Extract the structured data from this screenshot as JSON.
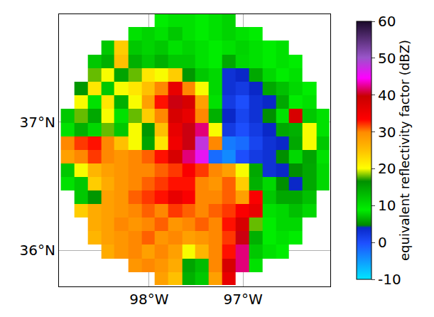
{
  "chart_data": {
    "type": "heatmap",
    "x": [
      -98.87,
      -98.73,
      -98.58,
      -98.44,
      -98.3,
      -98.15,
      -98.01,
      -97.87,
      -97.72,
      -97.58,
      -97.44,
      -97.3,
      -97.15,
      -97.01,
      -96.86,
      -96.72,
      -96.58,
      -96.44,
      -96.29,
      -96.15
    ],
    "y": [
      35.78,
      35.88,
      35.99,
      36.1,
      36.2,
      36.31,
      36.41,
      36.52,
      36.63,
      36.73,
      36.84,
      36.94,
      37.05,
      37.16,
      37.26,
      37.37,
      37.47,
      37.58,
      37.69,
      37.79
    ],
    "values": [
      [
        null,
        null,
        null,
        null,
        null,
        null,
        null,
        28,
        25,
        14,
        12,
        28,
        36,
        null,
        null,
        null,
        null,
        null,
        null,
        null
      ],
      [
        null,
        null,
        null,
        null,
        null,
        29,
        30,
        29,
        27,
        15,
        13,
        30,
        38,
        42,
        10,
        null,
        null,
        null,
        null,
        null
      ],
      [
        null,
        null,
        null,
        27,
        29,
        30,
        28,
        30,
        28,
        20,
        26,
        30,
        33,
        42,
        12,
        10,
        9,
        null,
        null,
        null
      ],
      [
        null,
        null,
        26,
        28,
        29,
        30,
        31,
        29,
        30,
        28,
        29,
        30,
        32,
        40,
        14,
        9,
        10,
        9,
        null,
        null
      ],
      [
        null,
        null,
        27,
        28,
        30,
        29,
        30,
        31,
        29,
        30,
        31,
        30,
        33,
        38,
        18,
        9,
        8,
        8,
        null,
        null
      ],
      [
        null,
        24,
        27,
        28,
        29,
        30,
        31,
        30,
        32,
        31,
        30,
        31,
        32,
        34,
        36,
        10,
        8,
        7,
        8,
        null
      ],
      [
        null,
        12,
        16,
        28,
        29,
        31,
        32,
        33,
        36,
        34,
        30,
        30,
        31,
        28,
        34,
        12,
        6,
        6,
        7,
        null
      ],
      [
        10,
        12,
        24,
        27,
        29,
        30,
        31,
        32,
        33,
        33,
        30,
        29,
        31,
        24,
        14,
        8,
        5,
        4,
        6,
        8
      ],
      [
        12,
        20,
        26,
        28,
        29,
        30,
        30,
        31,
        32,
        34,
        32,
        30,
        28,
        20,
        6,
        3,
        4,
        5,
        6,
        8
      ],
      [
        28,
        30,
        32,
        30,
        29,
        30,
        31,
        33,
        38,
        42,
        46,
        -2,
        -4,
        0,
        2,
        3,
        5,
        8,
        15,
        10
      ],
      [
        30,
        32,
        33,
        30,
        25,
        20,
        15,
        22,
        35,
        40,
        48,
        30,
        -3,
        -2,
        1,
        3,
        4,
        6,
        20,
        12
      ],
      [
        10,
        14,
        8,
        18,
        12,
        20,
        16,
        25,
        36,
        40,
        42,
        20,
        2,
        0,
        2,
        4,
        6,
        14,
        20,
        10
      ],
      [
        12,
        18,
        6,
        20,
        10,
        18,
        24,
        30,
        38,
        36,
        30,
        14,
        4,
        1,
        3,
        5,
        10,
        38,
        12,
        10
      ],
      [
        null,
        20,
        10,
        22,
        14,
        20,
        28,
        33,
        40,
        38,
        28,
        10,
        2,
        0,
        3,
        4,
        6,
        9,
        10,
        null
      ],
      [
        null,
        16,
        22,
        12,
        20,
        22,
        25,
        30,
        36,
        30,
        20,
        8,
        3,
        2,
        4,
        6,
        7,
        8,
        9,
        null
      ],
      [
        null,
        null,
        18,
        20,
        15,
        18,
        22,
        20,
        24,
        16,
        12,
        8,
        3,
        4,
        6,
        8,
        9,
        10,
        null,
        null
      ],
      [
        null,
        null,
        12,
        14,
        25,
        14,
        12,
        14,
        12,
        12,
        10,
        9,
        6,
        8,
        10,
        9,
        10,
        9,
        null,
        null
      ],
      [
        null,
        null,
        null,
        12,
        24,
        12,
        11,
        12,
        10,
        11,
        10,
        9,
        10,
        11,
        10,
        9,
        10,
        null,
        null,
        null
      ],
      [
        null,
        null,
        null,
        null,
        null,
        10,
        11,
        10,
        12,
        10,
        9,
        10,
        11,
        10,
        9,
        null,
        null,
        null,
        null,
        null
      ],
      [
        null,
        null,
        null,
        null,
        null,
        null,
        null,
        9,
        10,
        10,
        9,
        10,
        11,
        null,
        null,
        null,
        null,
        null,
        null,
        null
      ]
    ],
    "xlim": [
      -98.96,
      -96.07
    ],
    "ylim": [
      35.72,
      37.84
    ],
    "xticks": [
      {
        "value": -98,
        "label": "98°W"
      },
      {
        "value": -97,
        "label": "97°W"
      }
    ],
    "yticks": [
      {
        "value": 36,
        "label": "36°N"
      },
      {
        "value": 37,
        "label": "37°N"
      }
    ],
    "grid": true,
    "colorbar": {
      "title": "equivalent reflectivity factor (dBZ)",
      "range": [
        -10,
        60
      ],
      "ticks": [
        -10,
        0,
        10,
        20,
        30,
        40,
        50,
        60
      ]
    }
  }
}
